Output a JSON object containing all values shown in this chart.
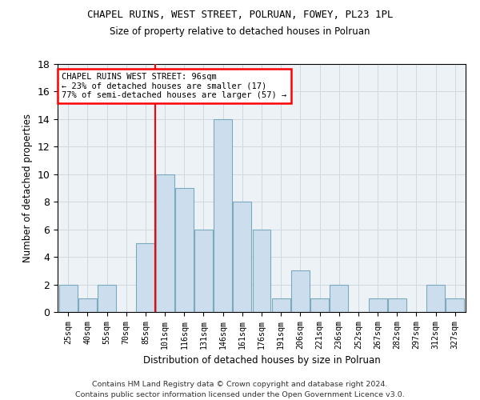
{
  "title1": "CHAPEL RUINS, WEST STREET, POLRUAN, FOWEY, PL23 1PL",
  "title2": "Size of property relative to detached houses in Polruan",
  "xlabel": "Distribution of detached houses by size in Polruan",
  "ylabel": "Number of detached properties",
  "categories": [
    "25sqm",
    "40sqm",
    "55sqm",
    "70sqm",
    "85sqm",
    "101sqm",
    "116sqm",
    "131sqm",
    "146sqm",
    "161sqm",
    "176sqm",
    "191sqm",
    "206sqm",
    "221sqm",
    "236sqm",
    "252sqm",
    "267sqm",
    "282sqm",
    "297sqm",
    "312sqm",
    "327sqm"
  ],
  "values": [
    2,
    1,
    2,
    0,
    5,
    10,
    9,
    6,
    14,
    8,
    6,
    1,
    3,
    1,
    2,
    0,
    1,
    1,
    0,
    2,
    1
  ],
  "bar_color": "#ccdded",
  "bar_edge_color": "#7aaabb",
  "grid_color": "#d0d8e0",
  "background_color": "#edf2f7",
  "red_line_x": 4.5,
  "annotation_text": "CHAPEL RUINS WEST STREET: 96sqm\n← 23% of detached houses are smaller (17)\n77% of semi-detached houses are larger (57) →",
  "annotation_box_color": "white",
  "annotation_box_edge": "red",
  "ylim": [
    0,
    18
  ],
  "yticks": [
    0,
    2,
    4,
    6,
    8,
    10,
    12,
    14,
    16,
    18
  ],
  "footer": "Contains HM Land Registry data © Crown copyright and database right 2024.\nContains public sector information licensed under the Open Government Licence v3.0."
}
